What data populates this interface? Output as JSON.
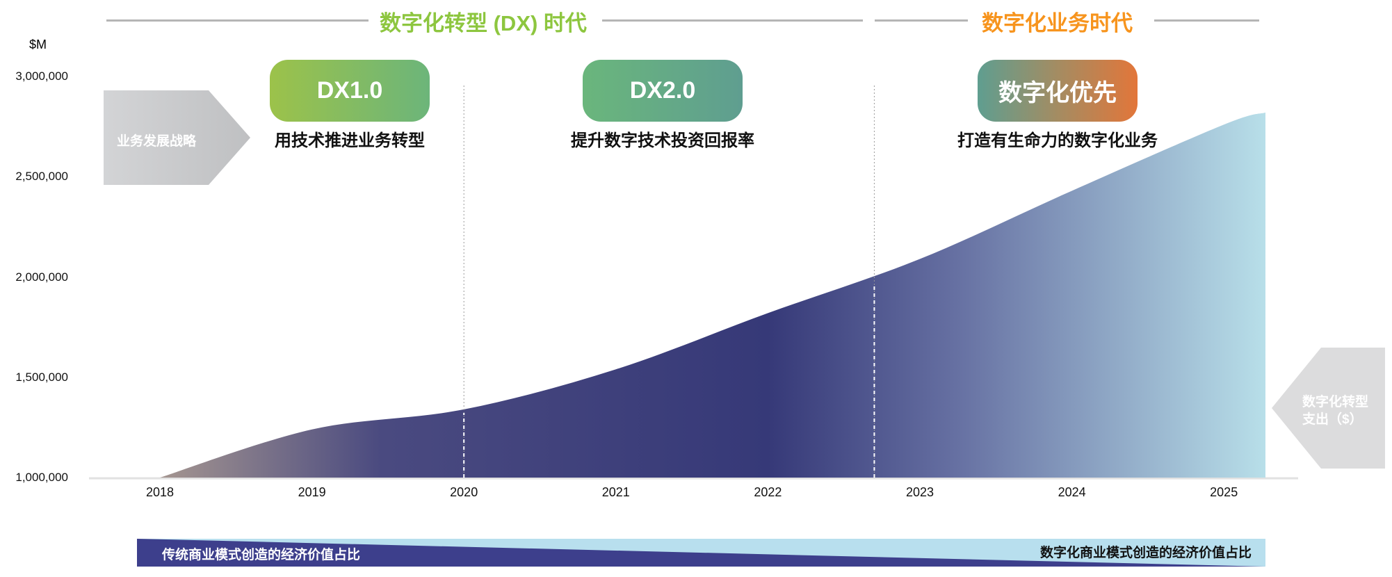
{
  "eras": {
    "dx_era": "数字化转型 (DX) 时代",
    "digital_era": "数字化业务时代"
  },
  "strategy_label": "业务发展战略",
  "stages": [
    {
      "title": "DX1.0",
      "subtitle": "用技术推进业务转型"
    },
    {
      "title": "DX2.0",
      "subtitle": "提升数字技术投资回报率"
    },
    {
      "title": "数字化优先",
      "subtitle": "打造有生命力的数字化业务"
    }
  ],
  "spend_label_line1": "数字化转型",
  "spend_label_line2": "支出（$）",
  "bottom_band": {
    "left": "传统商业模式创造的经济价值占比",
    "right": "数字化商业模式创造的经济价值占比"
  },
  "colors": {
    "green": "#8dc63f",
    "orange": "#f7941d",
    "navy": "#3a3c7a",
    "lightblue": "#b8dfee"
  },
  "chart_data": {
    "type": "area",
    "ylabel": "$M",
    "ylim": [
      1000000,
      3000000
    ],
    "yticks": [
      "3,000,000",
      "2,500,000",
      "2,000,000",
      "1,500,000",
      "1,000,000"
    ],
    "ytick_values": [
      3000000,
      2500000,
      2000000,
      1500000,
      1000000
    ],
    "x": [
      "2018",
      "2019",
      "2020",
      "2021",
      "2022",
      "2023",
      "2024",
      "2025"
    ],
    "values": [
      1000000,
      1240000,
      1340000,
      1540000,
      1820000,
      2090000,
      2430000,
      2760000
    ],
    "end_value": 2820000,
    "series_name": "数字化转型支出（$）",
    "dividers": [
      "2020",
      "2022.7"
    ]
  }
}
